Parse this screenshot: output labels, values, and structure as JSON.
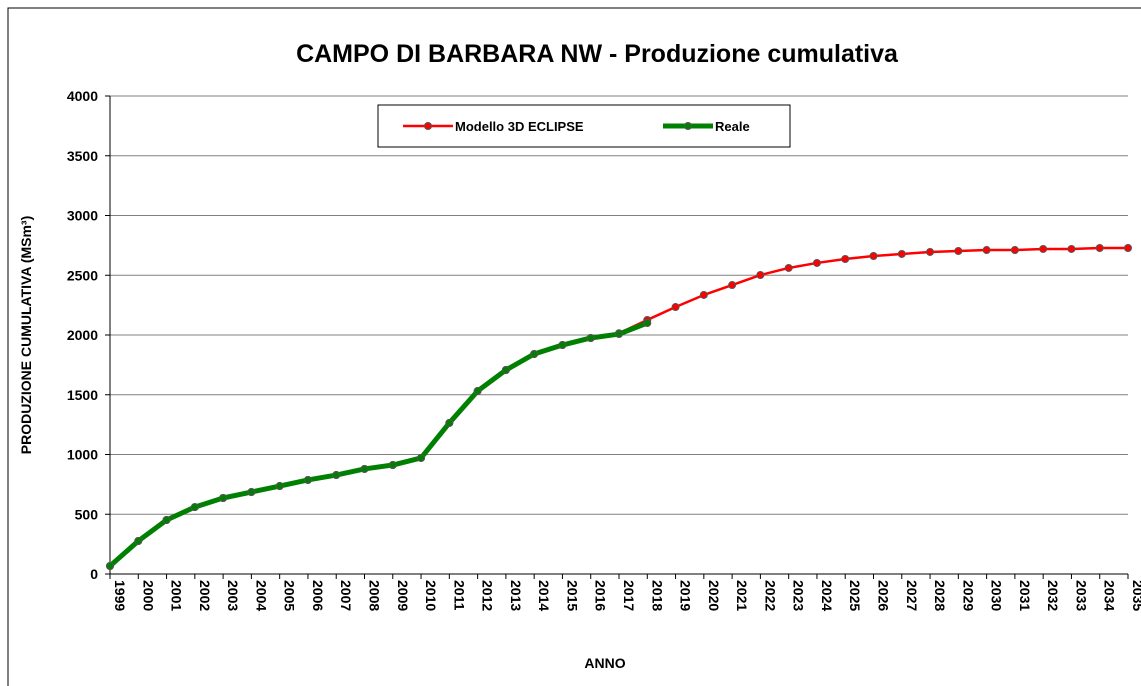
{
  "chart_data": {
    "type": "line",
    "title": "CAMPO DI BARBARA NW - Produzione cumulativa",
    "x_label": "ANNO",
    "y_label": "PRODUZIONE CUMULATIVA (MSm³)",
    "categories": [
      "1999",
      "2000",
      "2001",
      "2002",
      "2003",
      "2004",
      "2005",
      "2006",
      "2007",
      "2008",
      "2009",
      "2010",
      "2011",
      "2012",
      "2013",
      "2014",
      "2015",
      "2016",
      "2017",
      "2018",
      "2019",
      "2020",
      "2021",
      "2022",
      "2023",
      "2024",
      "2025",
      "2026",
      "2027",
      "2028",
      "2029",
      "2030",
      "2031",
      "2032",
      "2033",
      "2034",
      "2035"
    ],
    "series": [
      {
        "name": "Modello 3D ECLIPSE",
        "color": "#ff0000",
        "values": [
          67,
          276,
          452,
          560,
          636,
          686,
          736,
          787,
          828,
          879,
          912,
          971,
          1264,
          1531,
          1707,
          1841,
          1916,
          1975,
          2015,
          2126,
          2234,
          2335,
          2418,
          2502,
          2561,
          2603,
          2636,
          2661,
          2678,
          2695,
          2703,
          2711,
          2711,
          2720,
          2720,
          2728,
          2728
        ]
      },
      {
        "name": "Reale",
        "color": "#008000",
        "values": [
          67,
          276,
          452,
          560,
          636,
          686,
          736,
          787,
          828,
          879,
          912,
          971,
          1264,
          1531,
          1707,
          1841,
          1916,
          1975,
          2008,
          2100,
          null,
          null,
          null,
          null,
          null,
          null,
          null,
          null,
          null,
          null,
          null,
          null,
          null,
          null,
          null,
          null,
          null
        ]
      }
    ],
    "ylim": [
      0,
      4000
    ],
    "yticks": [
      0,
      500,
      1000,
      1500,
      2000,
      2500,
      3000,
      3500,
      4000
    ],
    "grid": true
  }
}
